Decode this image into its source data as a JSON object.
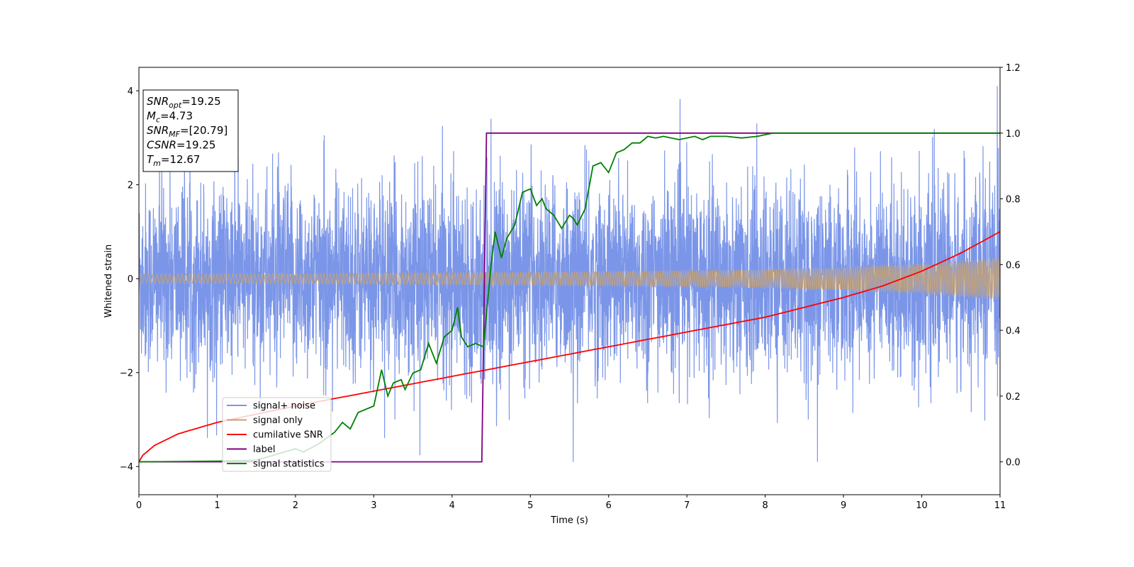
{
  "chart_data": {
    "type": "line",
    "xlabel": "Time (s)",
    "ylabel": "Whitened strain",
    "xlim": [
      0,
      11
    ],
    "ylim": [
      -4.6,
      4.5
    ],
    "y2lim": [
      -0.1,
      1.2
    ],
    "x_ticks": [
      "0",
      "1",
      "2",
      "3",
      "4",
      "5",
      "6",
      "7",
      "8",
      "9",
      "10",
      "11"
    ],
    "y_ticks": [
      "−4",
      "−2",
      "0",
      "2",
      "4"
    ],
    "y2_ticks": [
      "0.0",
      "0.2",
      "0.4",
      "0.6",
      "0.8",
      "1.0",
      "1.2"
    ],
    "grid": false,
    "legend_position": "lower-left",
    "annotation": {
      "lines": [
        {
          "base": "SNR",
          "sub": "opt",
          "value": "=19.25"
        },
        {
          "base": "M",
          "sub": "c",
          "value": "=4.73"
        },
        {
          "base": "SNR",
          "sub": "MF",
          "value": "=[20.79]"
        },
        {
          "base": "CSNR",
          "sub": "",
          "value": "=19.25"
        },
        {
          "base": "T",
          "sub": "m",
          "value": "=12.67"
        }
      ]
    },
    "series": [
      {
        "name": "signal+ noise",
        "axis": "left",
        "color": "#7b96e8",
        "description": "noisy whitened strain, roughly gaussian with spread ~1 and spikes to about ±3.5"
      },
      {
        "name": "signal only",
        "axis": "left",
        "color": "#c3a27a",
        "envelope": {
          "x": [
            0,
            2,
            4,
            6,
            8,
            10,
            11
          ],
          "amplitude": [
            0.1,
            0.11,
            0.13,
            0.16,
            0.2,
            0.32,
            0.45
          ]
        }
      },
      {
        "name": "cumilative SNR",
        "axis": "right",
        "color": "#ff0000",
        "x": [
          0,
          0.05,
          0.2,
          0.5,
          1,
          1.5,
          2,
          3,
          4,
          5,
          6,
          7,
          8,
          9,
          9.5,
          10,
          10.5,
          11
        ],
        "y": [
          0.0,
          0.02,
          0.05,
          0.085,
          0.12,
          0.145,
          0.17,
          0.215,
          0.26,
          0.305,
          0.35,
          0.395,
          0.44,
          0.5,
          0.535,
          0.58,
          0.635,
          0.7
        ]
      },
      {
        "name": "label",
        "axis": "right",
        "color": "#800080",
        "x": [
          0,
          4.38,
          4.44,
          11
        ],
        "y": [
          0,
          0,
          1,
          1
        ]
      },
      {
        "name": "signal statistics",
        "axis": "right",
        "color": "#008000",
        "x": [
          0,
          1,
          1.5,
          2,
          2.1,
          2.3,
          2.5,
          2.6,
          2.7,
          2.8,
          3.0,
          3.1,
          3.18,
          3.25,
          3.35,
          3.4,
          3.5,
          3.6,
          3.7,
          3.8,
          3.9,
          4.0,
          4.07,
          4.12,
          4.2,
          4.3,
          4.4,
          4.5,
          4.55,
          4.63,
          4.7,
          4.8,
          4.9,
          5.0,
          5.08,
          5.15,
          5.2,
          5.3,
          5.4,
          5.5,
          5.55,
          5.6,
          5.7,
          5.8,
          5.9,
          6.0,
          6.1,
          6.2,
          6.3,
          6.4,
          6.5,
          6.6,
          6.7,
          6.9,
          7.1,
          7.2,
          7.3,
          7.5,
          7.7,
          7.9,
          8.1,
          8.5,
          9.0,
          9.5,
          11.0
        ],
        "y": [
          0.0,
          0.002,
          0.005,
          0.04,
          0.03,
          0.055,
          0.09,
          0.12,
          0.1,
          0.15,
          0.17,
          0.28,
          0.2,
          0.24,
          0.25,
          0.22,
          0.27,
          0.28,
          0.36,
          0.3,
          0.38,
          0.4,
          0.47,
          0.38,
          0.35,
          0.36,
          0.35,
          0.6,
          0.7,
          0.62,
          0.68,
          0.72,
          0.82,
          0.83,
          0.78,
          0.8,
          0.77,
          0.75,
          0.71,
          0.75,
          0.74,
          0.72,
          0.77,
          0.9,
          0.91,
          0.88,
          0.94,
          0.95,
          0.97,
          0.97,
          0.99,
          0.985,
          0.99,
          0.98,
          0.99,
          0.98,
          0.99,
          0.99,
          0.985,
          0.99,
          1.0,
          1.0,
          1.0,
          1.0,
          1.0
        ]
      }
    ]
  }
}
